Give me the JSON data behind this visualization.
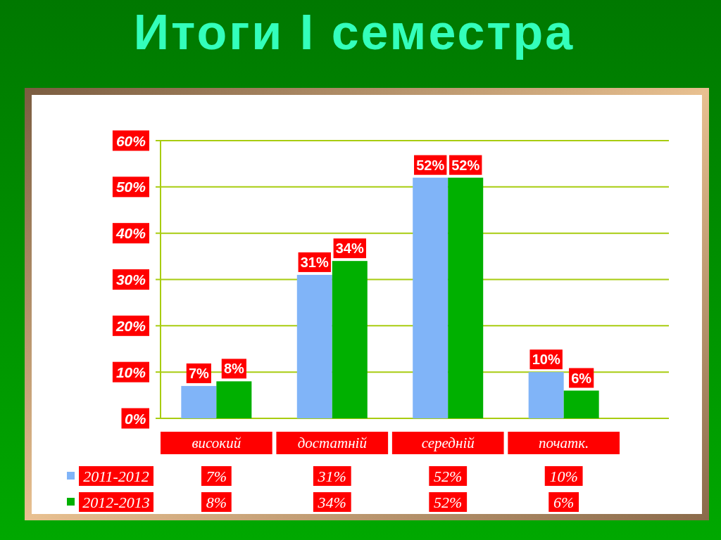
{
  "chart_data": {
    "type": "bar",
    "title": "Итоги I семестра",
    "categories": [
      "високий",
      "достатній",
      "середній",
      "початк."
    ],
    "series": [
      {
        "name": "2011-2012",
        "color": "#80b4f8",
        "values": [
          7,
          31,
          52,
          10
        ],
        "value_labels": [
          "7%",
          "31%",
          "52%",
          "10%"
        ]
      },
      {
        "name": "2012-2013",
        "color": "#00b000",
        "values": [
          8,
          34,
          52,
          6
        ],
        "value_labels": [
          "8%",
          "34%",
          "52%",
          "6%"
        ]
      }
    ],
    "ylim": [
      0,
      60
    ],
    "yticks": [
      {
        "value": 0,
        "label": "0%"
      },
      {
        "value": 10,
        "label": "10%"
      },
      {
        "value": 20,
        "label": "20%"
      },
      {
        "value": 30,
        "label": "30%"
      },
      {
        "value": 40,
        "label": "40%"
      },
      {
        "value": 50,
        "label": "50%"
      },
      {
        "value": 60,
        "label": "60%"
      }
    ],
    "grid": "y",
    "legend": "bottom left"
  }
}
